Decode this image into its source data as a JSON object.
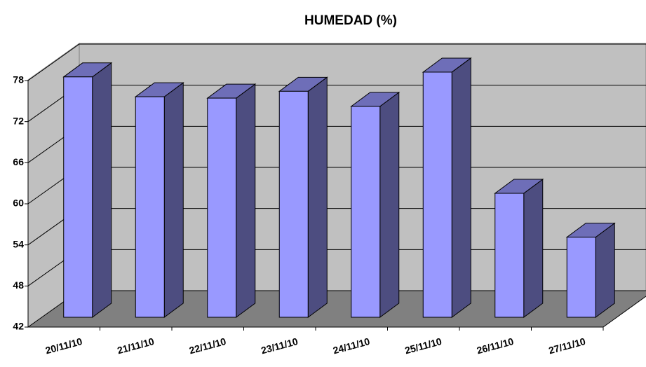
{
  "chart_data": {
    "type": "bar3d",
    "title": "HUMEDAD (%)",
    "categories": [
      "20/11/10",
      "21/11/10",
      "22/11/10",
      "23/11/10",
      "24/11/10",
      "25/11/10",
      "26/11/10",
      "27/11/10"
    ],
    "values": [
      77.1,
      74.2,
      74.0,
      75.0,
      72.8,
      77.8,
      60.1,
      53.7
    ],
    "color": "#9999ff",
    "ylim": [
      42,
      78
    ],
    "yticks": [
      42,
      48,
      54,
      60,
      66,
      72,
      78
    ],
    "grid": true
  }
}
